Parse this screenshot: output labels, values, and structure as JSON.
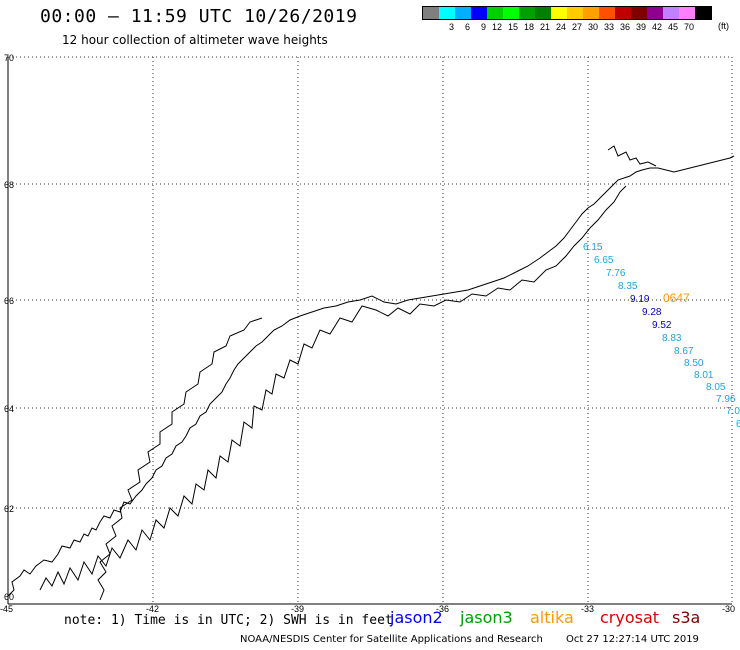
{
  "header": {
    "title": "00:00 – 11:59 UTC 10/26/2019",
    "subtitle": "12 hour collection of altimeter wave heights"
  },
  "legend": {
    "colors": [
      "#7f7f7f",
      "#00ffff",
      "#00b0ff",
      "#0000ff",
      "#00d000",
      "#00ff00",
      "#00a000",
      "#008000",
      "#ffff00",
      "#ffcc00",
      "#ffa000",
      "#ff5000",
      "#c00000",
      "#800000",
      "#900090",
      "#c080ff",
      "#ff80ff",
      "#000000"
    ],
    "labels": [
      "3",
      "6",
      "9",
      "12",
      "15",
      "18",
      "21",
      "24",
      "27",
      "30",
      "33",
      "36",
      "39",
      "42",
      "45",
      "70"
    ],
    "unit": "(ft)"
  },
  "axes": {
    "lon_labels": [
      "-45",
      "-42",
      "-39",
      "-36",
      "-33",
      "-30"
    ],
    "lat_labels": [
      "70",
      "68",
      "66",
      "64",
      "62",
      "60"
    ]
  },
  "measurements": [
    {
      "value": "6.15",
      "color": "#1ca3e0"
    },
    {
      "value": "6.65",
      "color": "#1ca3e0"
    },
    {
      "value": "7.76",
      "color": "#1ca3e0"
    },
    {
      "value": "8.35",
      "color": "#1ca3e0"
    },
    {
      "value": "9.19",
      "color": "#0000c0"
    },
    {
      "value": "9.28",
      "color": "#0000c0"
    },
    {
      "value": "9.52",
      "color": "#0000c0"
    },
    {
      "value": "8.83",
      "color": "#1ca3e0"
    },
    {
      "value": "8.67",
      "color": "#1ca3e0"
    },
    {
      "value": "8.50",
      "color": "#1ca3e0"
    },
    {
      "value": "8.01",
      "color": "#1ca3e0"
    },
    {
      "value": "8.05",
      "color": "#1ca3e0"
    },
    {
      "value": "7.96",
      "color": "#1ca3e0"
    },
    {
      "value": "7.0",
      "color": "#1ca3e0"
    },
    {
      "value": "6",
      "color": "#1ca3e0"
    }
  ],
  "extra_label": {
    "value": "0647",
    "color": "#ff9900"
  },
  "note": "note: 1) Time is in UTC; 2) SWH is in feet",
  "satellites": [
    {
      "name": "jason2",
      "color": "#0000ff"
    },
    {
      "name": "jason3",
      "color": "#00a000"
    },
    {
      "name": "altika",
      "color": "#ff9900"
    },
    {
      "name": "cryosat",
      "color": "#e00000"
    },
    {
      "name": "s3a",
      "color": "#800000"
    }
  ],
  "footer": {
    "credit": "NOAA/NESDIS Center for Satellite Applications and Research",
    "date": "Oct 27 12:27:14 UTC 2019"
  }
}
